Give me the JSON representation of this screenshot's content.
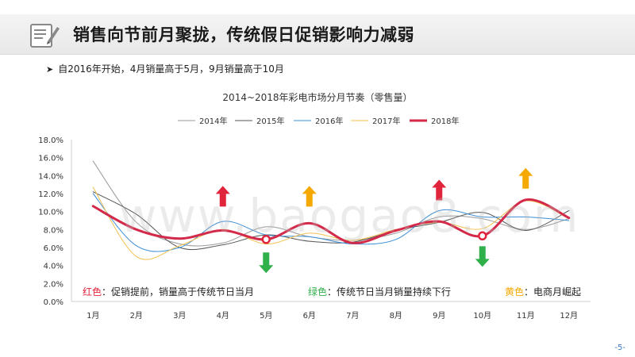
{
  "header": {
    "title": "销售向节前月聚拢，传统假日促销影响力减弱"
  },
  "bullet": {
    "text": "自2016年开始，4月销量高于5月，9月销量高于10月"
  },
  "notes": [
    {
      "key": "红色",
      "text": "：促销提前，销量高于传统节日当月",
      "color": "#e0243c"
    },
    {
      "key": "绿色",
      "text": "：传统节日当月销量持续下行",
      "color": "#2fb04a"
    },
    {
      "key": "黄色",
      "text": "：电商月崛起",
      "color": "#f5a800"
    }
  ],
  "watermark": "www.baogao8.com",
  "page_number": "-5-",
  "colors": {
    "red": "#e0243c",
    "green": "#2fb04a",
    "yellow": "#f5a800"
  },
  "chart_data": {
    "type": "line",
    "title": "2014~2018年彩电市场分月节奏（零售量）",
    "xlabel": "",
    "ylabel": "",
    "categories": [
      "1月",
      "2月",
      "3月",
      "4月",
      "5月",
      "6月",
      "7月",
      "8月",
      "9月",
      "10月",
      "11月",
      "12月"
    ],
    "ylim": [
      0,
      18
    ],
    "yticks": [
      0,
      2,
      4,
      6,
      8,
      10,
      12,
      14,
      16,
      18
    ],
    "ytick_labels": [
      "0.0%",
      "2.0%",
      "4.0%",
      "6.0%",
      "8.0%",
      "10.0%",
      "12.0%",
      "14.0%",
      "16.0%",
      "18.0%"
    ],
    "legend_position": "top",
    "series": [
      {
        "name": "2014年",
        "color": "#9a9a9a",
        "width": 1,
        "values": [
          15.6,
          8.8,
          6.4,
          6.5,
          8.3,
          7.2,
          6.8,
          7.6,
          9.4,
          9.2,
          8.0,
          9.2
        ]
      },
      {
        "name": "2015年",
        "color": "#555555",
        "width": 1,
        "values": [
          12.2,
          9.7,
          6.0,
          6.3,
          7.4,
          6.7,
          6.6,
          7.9,
          8.8,
          9.9,
          7.9,
          10.1
        ]
      },
      {
        "name": "2016年",
        "color": "#3d8fd6",
        "width": 1,
        "values": [
          12.0,
          6.2,
          6.0,
          8.9,
          7.4,
          7.2,
          6.4,
          6.9,
          10.1,
          9.4,
          9.4,
          9.0
        ]
      },
      {
        "name": "2017年",
        "color": "#f2c250",
        "width": 1,
        "values": [
          12.7,
          5.0,
          6.2,
          8.0,
          6.4,
          7.6,
          6.8,
          8.0,
          8.8,
          8.1,
          11.2,
          9.2
        ]
      },
      {
        "name": "2018年",
        "color": "#d42a4a",
        "width": 3,
        "values": [
          10.6,
          8.0,
          7.0,
          7.9,
          6.9,
          8.7,
          6.5,
          7.9,
          8.9,
          7.3,
          11.3,
          9.3
        ]
      }
    ],
    "highlights": [
      {
        "category_index": 4,
        "value": 6.9
      },
      {
        "category_index": 9,
        "value": 7.3
      }
    ],
    "annotations": [
      {
        "category_index": 3,
        "direction": "up",
        "color_key": "red",
        "value": 11.7
      },
      {
        "category_index": 4,
        "direction": "down",
        "color_key": "green",
        "value": 4.3
      },
      {
        "category_index": 5,
        "direction": "up",
        "color_key": "yellow",
        "value": 11.7
      },
      {
        "category_index": 8,
        "direction": "up",
        "color_key": "red",
        "value": 12.4
      },
      {
        "category_index": 9,
        "direction": "down",
        "color_key": "green",
        "value": 5.0
      },
      {
        "category_index": 10,
        "direction": "up",
        "color_key": "yellow",
        "value": 13.7
      }
    ]
  }
}
